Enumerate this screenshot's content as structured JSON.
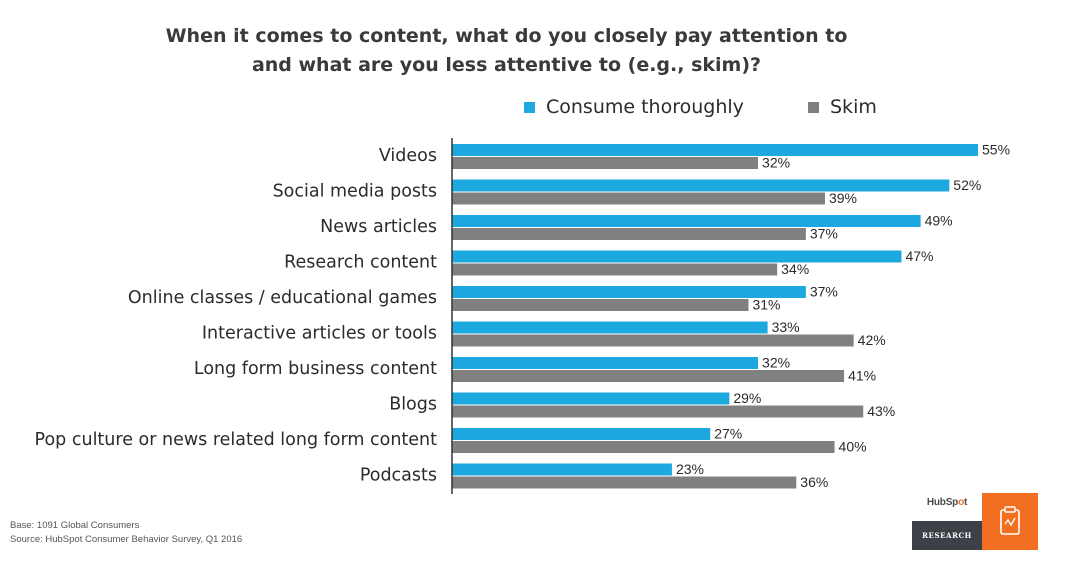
{
  "chart_data": {
    "type": "bar",
    "orientation": "horizontal",
    "title_lines": [
      "When it comes to content, what do you closely pay attention to",
      "and what are you less attentive to (e.g., skim)?"
    ],
    "categories": [
      "Videos",
      "Social media posts",
      "News articles",
      "Research content",
      "Online classes / educational games",
      "Interactive articles or tools",
      "Long form business content",
      "Blogs",
      "Pop culture or news related long form content",
      "Podcasts"
    ],
    "series": [
      {
        "name": "Consume thoroughly",
        "color": "#1ea8e0",
        "values": [
          55,
          52,
          49,
          47,
          37,
          33,
          32,
          29,
          27,
          23
        ]
      },
      {
        "name": "Skim",
        "color": "#808080",
        "values": [
          32,
          39,
          37,
          34,
          31,
          42,
          41,
          43,
          40,
          36
        ]
      }
    ],
    "value_suffix": "%",
    "xlim": [
      0,
      55
    ],
    "grid": false,
    "legend_position": "top"
  },
  "footnotes": {
    "base": "Base: 1091 Global Consumers",
    "source": "Source: HubSpot Consumer Behavior Survey, Q1 2016"
  },
  "brand": {
    "logo_text_before": "HubSp",
    "logo_text_o": "o",
    "logo_text_after": "t",
    "research_label": "RESEARCH",
    "accent_color": "#f26f21",
    "icon": "clipboard-icon"
  }
}
